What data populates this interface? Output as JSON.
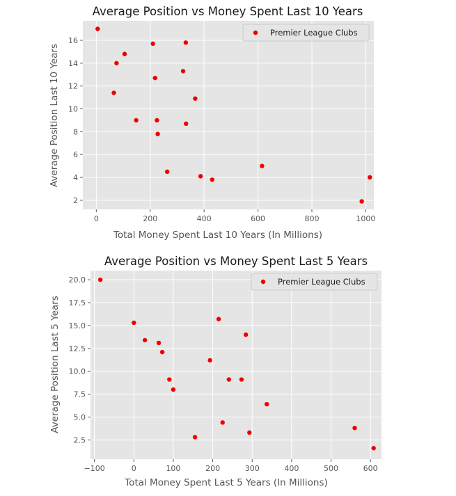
{
  "colors": {
    "plot_background": "#e5e5e5",
    "grid": "#ffffff",
    "point": "#ee0000",
    "text": "#555555",
    "legend_background": "#e5e5e5",
    "legend_border": "#cccccc"
  },
  "chart_data": [
    {
      "type": "scatter",
      "title": "Average Position vs Money Spent Last 10 Years",
      "xlabel": "Total Money Spent Last 10 Years (In Millions)",
      "ylabel": "Average Position Last 10 Years",
      "xlim": [
        -50,
        1030
      ],
      "ylim": [
        1.2,
        17.7
      ],
      "xticks": [
        0,
        200,
        400,
        600,
        800,
        1000
      ],
      "yticks": [
        2,
        4,
        6,
        8,
        10,
        12,
        14,
        16
      ],
      "xtick_labels": [
        "0",
        "200",
        "400",
        "600",
        "800",
        "1000"
      ],
      "ytick_labels": [
        "2",
        "4",
        "6",
        "8",
        "10",
        "12",
        "14",
        "16"
      ],
      "grid": true,
      "legend_position": "top-right",
      "series": [
        {
          "name": "Premier League Clubs",
          "x": [
            5,
            65,
            75,
            105,
            148,
            210,
            218,
            225,
            228,
            263,
            322,
            332,
            333,
            367,
            387,
            430,
            615,
            985,
            1015
          ],
          "y": [
            17.0,
            11.4,
            14.0,
            14.8,
            9.0,
            15.7,
            12.7,
            9.0,
            7.8,
            4.5,
            13.3,
            15.8,
            8.7,
            10.9,
            4.1,
            3.8,
            5.0,
            1.9,
            4.0
          ]
        }
      ]
    },
    {
      "type": "scatter",
      "title": "Average Position vs Money Spent Last 5 Years",
      "xlabel": "Total Money Spent Last 5 Years (In Millions)",
      "ylabel": "Average Position Last 5 Years",
      "xlim": [
        -110,
        628
      ],
      "ylim": [
        0.4,
        21.0
      ],
      "xticks": [
        -100,
        0,
        100,
        200,
        300,
        400,
        500,
        600
      ],
      "yticks": [
        2.5,
        5.0,
        7.5,
        10.0,
        12.5,
        15.0,
        17.5,
        20.0
      ],
      "xtick_labels": [
        "−100",
        "0",
        "100",
        "200",
        "300",
        "400",
        "500",
        "600"
      ],
      "ytick_labels": [
        "2.5",
        "5.0",
        "7.5",
        "10.0",
        "12.5",
        "15.0",
        "17.5",
        "20.0"
      ],
      "grid": true,
      "legend_position": "top-right",
      "series": [
        {
          "name": "Premier League Clubs",
          "x": [
            -85,
            0,
            28,
            63,
            72,
            90,
            100,
            155,
            193,
            215,
            225,
            241,
            273,
            284,
            293,
            337,
            560,
            608
          ],
          "y": [
            20.0,
            15.3,
            13.4,
            13.1,
            12.1,
            9.1,
            8.0,
            2.8,
            11.2,
            15.7,
            4.4,
            9.1,
            9.1,
            14.0,
            3.3,
            6.4,
            3.8,
            1.6
          ]
        }
      ]
    }
  ]
}
